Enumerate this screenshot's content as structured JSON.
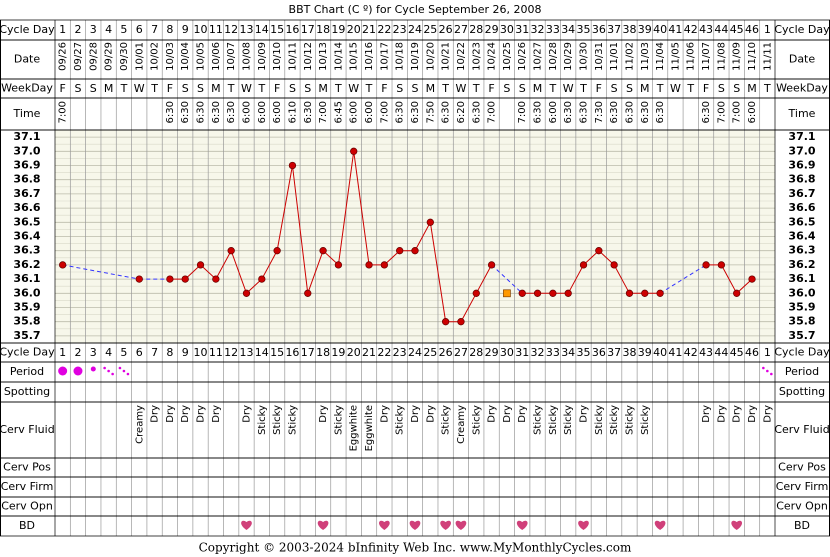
{
  "chart_data": {
    "type": "line",
    "title": "BBT Chart (C º) for Cycle September 26, 2008",
    "row_labels": {
      "cycle_day": "Cycle Day",
      "date": "Date",
      "weekday": "WeekDay",
      "time": "Time",
      "period": "Period",
      "spotting": "Spotting",
      "cerv_fluid": "Cerv Fluid",
      "cerv_pos": "Cerv Pos",
      "cerv_firm": "Cerv Firm",
      "cerv_opn": "Cerv Opn",
      "bd": "BD"
    },
    "cycle_days": [
      1,
      2,
      3,
      4,
      5,
      6,
      7,
      8,
      9,
      10,
      11,
      12,
      13,
      14,
      15,
      16,
      17,
      18,
      19,
      20,
      21,
      22,
      23,
      24,
      25,
      26,
      27,
      28,
      29,
      30,
      31,
      32,
      33,
      34,
      35,
      36,
      37,
      38,
      39,
      40,
      41,
      42,
      43,
      44,
      45,
      46,
      1
    ],
    "categories": [
      "09/26",
      "09/27",
      "09/28",
      "09/29",
      "09/30",
      "10/01",
      "10/02",
      "10/03",
      "10/04",
      "10/05",
      "10/06",
      "10/07",
      "10/08",
      "10/09",
      "10/10",
      "10/11",
      "10/12",
      "10/13",
      "10/14",
      "10/15",
      "10/16",
      "10/17",
      "10/18",
      "10/19",
      "10/20",
      "10/21",
      "10/22",
      "10/23",
      "10/24",
      "10/25",
      "10/26",
      "10/27",
      "10/28",
      "10/29",
      "10/30",
      "10/31",
      "11/01",
      "11/02",
      "11/03",
      "11/04",
      "11/05",
      "11/06",
      "11/07",
      "11/08",
      "11/09",
      "11/10",
      "11/11"
    ],
    "weekdays": [
      "F",
      "S",
      "S",
      "M",
      "T",
      "W",
      "T",
      "F",
      "S",
      "S",
      "M",
      "T",
      "W",
      "T",
      "F",
      "S",
      "S",
      "M",
      "T",
      "W",
      "T",
      "F",
      "S",
      "S",
      "M",
      "T",
      "W",
      "T",
      "F",
      "S",
      "S",
      "M",
      "T",
      "W",
      "T",
      "F",
      "S",
      "S",
      "M",
      "T",
      "W",
      "T",
      "F",
      "S",
      "S",
      "M",
      "T"
    ],
    "times": [
      "7:00",
      null,
      null,
      null,
      null,
      null,
      null,
      "6:30",
      "6:30",
      "6:30",
      "6:30",
      "6:30",
      "6:00",
      "6:00",
      "6:00",
      "6:10",
      "6:30",
      "7:00",
      "6:45",
      "6:00",
      "6:00",
      "7:00",
      "6:30",
      "6:30",
      "7:50",
      "6:30",
      "6:20",
      "6:30",
      "7:00",
      null,
      "7:00",
      "6:30",
      "6:00",
      "6:30",
      "6:30",
      "7:30",
      "6:30",
      "6:30",
      "6:30",
      "6:30",
      null,
      null,
      "6:30",
      "7:00",
      "7:00",
      "6:00",
      null
    ],
    "values": [
      36.2,
      null,
      null,
      null,
      null,
      36.1,
      null,
      36.1,
      36.1,
      36.2,
      36.1,
      36.3,
      36.0,
      36.1,
      36.3,
      36.9,
      36.0,
      36.3,
      36.2,
      37.0,
      36.2,
      36.2,
      36.3,
      36.3,
      36.5,
      35.8,
      35.8,
      36.0,
      36.2,
      36.0,
      36.0,
      36.0,
      36.0,
      36.0,
      36.2,
      36.3,
      36.2,
      36.0,
      36.0,
      36.0,
      null,
      null,
      36.2,
      36.2,
      36.0,
      36.1,
      null
    ],
    "excluded": [
      29
    ],
    "color": "#cc0000",
    "excluded_color": "#ff9900",
    "line_color": "#3333ff",
    "ylim": [
      35.65,
      37.15
    ],
    "yticks": [
      {
        "value": 37.1,
        "label": "37.1"
      },
      {
        "value": 37.0,
        "label": "37.0"
      },
      36.9,
      36.8,
      36.7,
      36.6,
      36.5,
      36.4,
      36.3,
      36.2,
      36.1,
      {
        "value": 36.0,
        "label": "36.0"
      },
      35.9,
      35.8,
      35.7
    ],
    "grid": true,
    "period": [
      "heavy",
      "heavy",
      "light",
      "spotting",
      "spotting",
      null,
      null,
      null,
      null,
      null,
      null,
      null,
      null,
      null,
      null,
      null,
      null,
      null,
      null,
      null,
      null,
      null,
      null,
      null,
      null,
      null,
      null,
      null,
      null,
      null,
      null,
      null,
      null,
      null,
      null,
      null,
      null,
      null,
      null,
      null,
      null,
      null,
      null,
      null,
      null,
      null,
      "spotting"
    ],
    "period_color": "#e000e0",
    "cerv_fluid": [
      null,
      null,
      null,
      null,
      null,
      "Creamy",
      "Dry",
      "Dry",
      "Dry",
      "Dry",
      "Dry",
      null,
      "Dry",
      "Sticky",
      "Sticky",
      "Sticky",
      null,
      "Dry",
      "Sticky",
      "Eggwhite",
      "Eggwhite",
      "Dry",
      "Sticky",
      "Dry",
      "Dry",
      "Sticky",
      "Creamy",
      "Sticky",
      "Dry",
      "Dry",
      "Dry",
      "Sticky",
      "Sticky",
      "Sticky",
      "Dry",
      "Sticky",
      "Sticky",
      "Sticky",
      "Sticky",
      null,
      null,
      null,
      "Dry",
      "Dry",
      "Dry",
      "Dry",
      "Dry"
    ],
    "bd": [
      false,
      false,
      false,
      false,
      false,
      false,
      false,
      false,
      false,
      false,
      false,
      false,
      true,
      false,
      false,
      false,
      false,
      true,
      false,
      false,
      false,
      true,
      false,
      true,
      false,
      true,
      true,
      false,
      false,
      false,
      true,
      false,
      false,
      false,
      true,
      false,
      false,
      false,
      false,
      true,
      false,
      false,
      false,
      false,
      true,
      false,
      false
    ],
    "bd_color": "#d0407a",
    "footer": "Copyright © 2003-2024 bInfinity Web Inc.     www.MyMonthlyCycles.com"
  }
}
